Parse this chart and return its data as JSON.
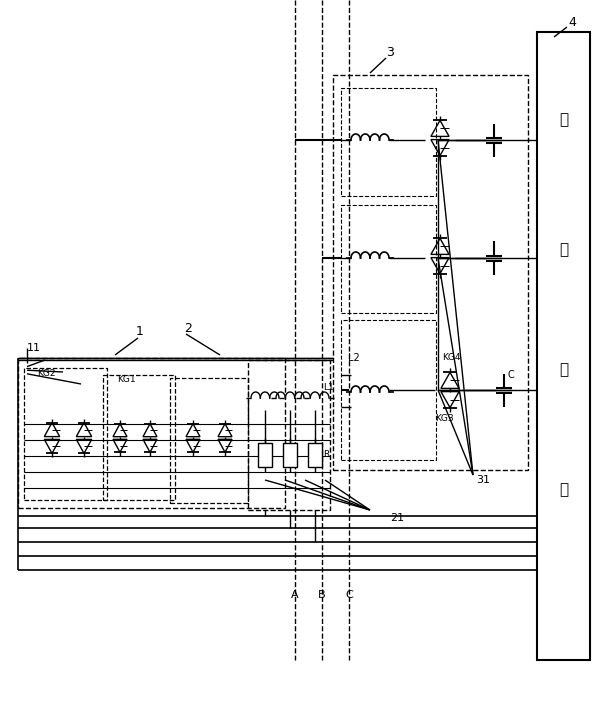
{
  "bg_color": "#ffffff",
  "fig_width": 6.05,
  "fig_height": 7.26,
  "dpi": 100,
  "control_chars": [
    "控",
    "制",
    "模",
    "块"
  ],
  "phase_labels": [
    "A",
    "B",
    "C"
  ]
}
